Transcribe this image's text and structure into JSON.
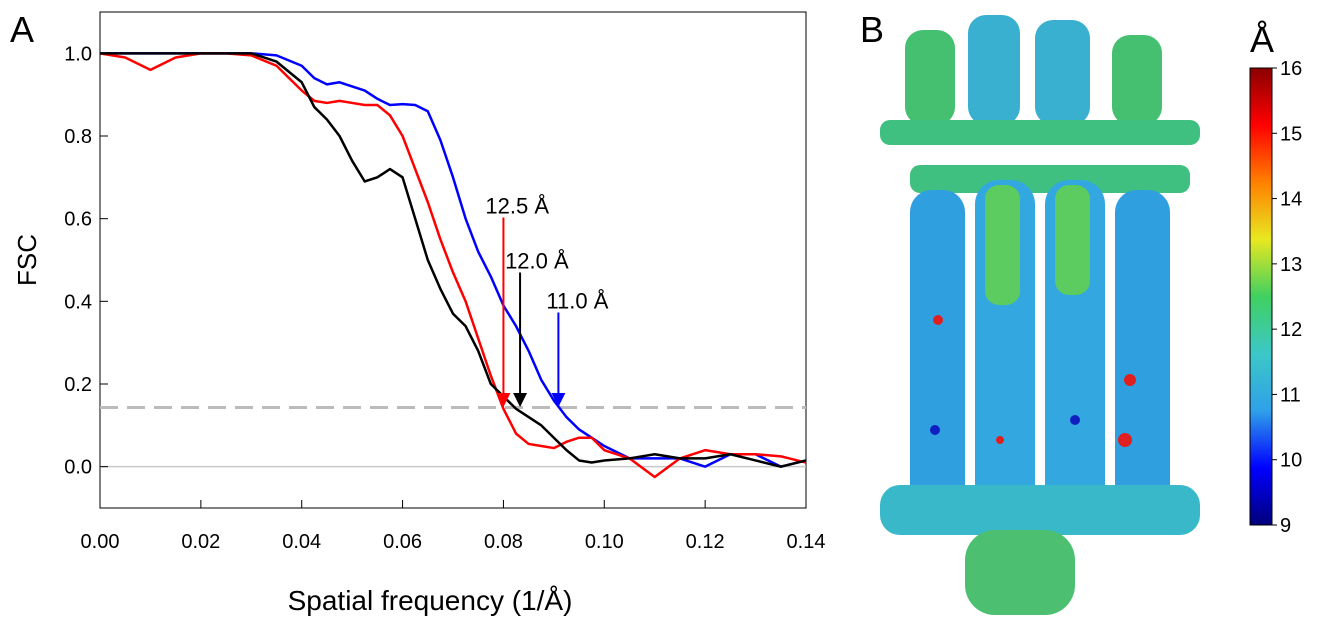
{
  "chart_data": [
    {
      "type": "line",
      "panel_label": "A",
      "xlabel": "Spatial frequency (1/Å)",
      "ylabel": "FSC",
      "x": [
        0,
        0.005,
        0.01,
        0.015,
        0.02,
        0.025,
        0.03,
        0.035,
        0.04,
        0.0425,
        0.045,
        0.0475,
        0.05,
        0.0525,
        0.055,
        0.0575,
        0.06,
        0.0625,
        0.065,
        0.0675,
        0.07,
        0.0725,
        0.075,
        0.0775,
        0.08,
        0.0825,
        0.085,
        0.0875,
        0.09,
        0.0925,
        0.095,
        0.0975,
        0.1,
        0.105,
        0.11,
        0.115,
        0.12,
        0.125,
        0.13,
        0.135,
        0.14
      ],
      "series": [
        {
          "color": "#0000ff",
          "values": [
            1,
            1,
            1,
            1,
            1,
            1,
            1,
            0.995,
            0.97,
            0.94,
            0.925,
            0.93,
            0.92,
            0.91,
            0.89,
            0.875,
            0.877,
            0.875,
            0.86,
            0.79,
            0.7,
            0.6,
            0.52,
            0.46,
            0.39,
            0.34,
            0.28,
            0.21,
            0.16,
            0.12,
            0.09,
            0.07,
            0.05,
            0.02,
            0.02,
            0.02,
            0,
            0.03,
            0.03,
            0,
            0.015
          ]
        },
        {
          "color": "#ff0000",
          "values": [
            1,
            0.99,
            0.96,
            0.99,
            1,
            1,
            0.995,
            0.97,
            0.91,
            0.885,
            0.88,
            0.885,
            0.88,
            0.875,
            0.875,
            0.85,
            0.8,
            0.72,
            0.64,
            0.55,
            0.47,
            0.4,
            0.31,
            0.22,
            0.14,
            0.08,
            0.055,
            0.05,
            0.045,
            0.06,
            0.07,
            0.07,
            0.04,
            0.02,
            -0.025,
            0.02,
            0.04,
            0.03,
            0.03,
            0.025,
            0.01
          ]
        },
        {
          "color": "#000000",
          "values": [
            1,
            1,
            1,
            1,
            1,
            1,
            1,
            0.98,
            0.93,
            0.87,
            0.84,
            0.8,
            0.74,
            0.69,
            0.7,
            0.72,
            0.7,
            0.6,
            0.5,
            0.43,
            0.37,
            0.34,
            0.28,
            0.2,
            0.17,
            0.14,
            0.12,
            0.1,
            0.07,
            0.04,
            0.015,
            0.01,
            0.015,
            0.02,
            0.03,
            0.02,
            0.02,
            0.03,
            0.015,
            0,
            0.015
          ]
        }
      ],
      "xlim": [
        0,
        0.14
      ],
      "xticks": [
        {
          "value": 0,
          "label": "0.00"
        },
        0.02,
        0.04,
        0.06,
        0.08,
        {
          "value": 0.1,
          "label": "0.10"
        },
        0.12,
        0.14
      ],
      "ylim": [
        -0.1,
        1.1
      ],
      "yticks": [
        {
          "value": 0,
          "label": "0.0"
        },
        0.2,
        0.4,
        0.6,
        0.8,
        {
          "value": 1,
          "label": "1.0"
        }
      ],
      "reference_lines": [
        {
          "value": 0,
          "color": "#c8c8c8",
          "style": "solid"
        },
        {
          "value": 0.143,
          "color": "#bbbbbb",
          "style": "dashed"
        }
      ],
      "annotations": [
        {
          "text": "12.5 Å",
          "x": 0.08,
          "y": 0.143,
          "color": "#ff0000"
        },
        {
          "text": "12.0 Å",
          "x": 0.0833,
          "y": 0.143,
          "color": "#000000"
        },
        {
          "text": "11.0 Å",
          "x": 0.0909,
          "y": 0.143,
          "color": "#0000ff"
        }
      ]
    },
    {
      "type": "colorbar",
      "panel_label": "B",
      "title": "Å",
      "ylim": [
        9,
        16
      ],
      "yticks": [
        9,
        10,
        11,
        12,
        13,
        14,
        15,
        16
      ],
      "colors": [
        "#00007a",
        "#0000ff",
        "#2fa0e8",
        "#3cc8c8",
        "#40d060",
        "#e8e820",
        "#ff8000",
        "#ff0000",
        "#8b0000"
      ]
    }
  ]
}
